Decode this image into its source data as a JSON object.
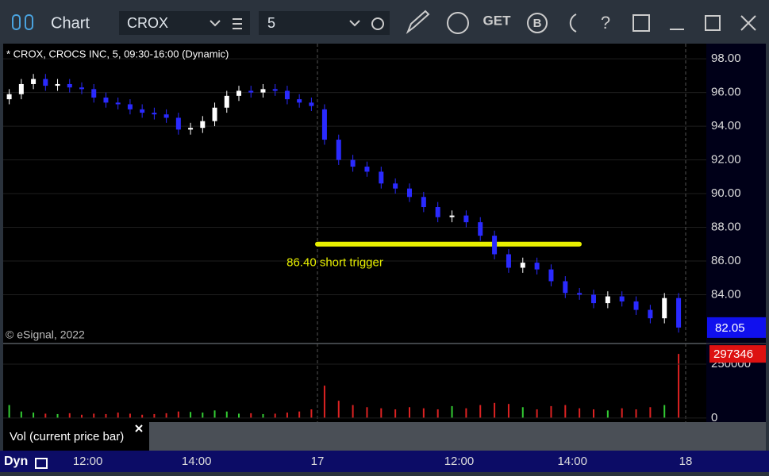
{
  "toolbar": {
    "title": "Chart",
    "symbol": "CROX",
    "interval": "5",
    "get": "GET",
    "b": "B",
    "help": "?"
  },
  "chart_data": {
    "type": "candlestick",
    "title": "* CROX, CROCS INC, 5, 09:30-16:00 (Dynamic)",
    "watermark": "© eSignal, 2022",
    "annotation": {
      "text": "86.40 short trigger",
      "level": 87.0,
      "color": "#e8f000"
    },
    "up_color": "#ffffff",
    "down_color": "#2a2aff",
    "open": [
      95.6,
      95.9,
      96.5,
      96.8,
      96.4,
      96.5,
      96.3,
      96.2,
      95.7,
      95.4,
      95.3,
      95.0,
      94.8,
      94.7,
      94.5,
      93.8,
      93.9,
      94.3,
      95.1,
      95.8,
      96.1,
      96.0,
      96.2,
      96.1,
      95.6,
      95.4,
      95.0,
      93.2,
      92.0,
      91.6,
      91.3,
      90.6,
      90.3,
      89.8,
      89.2,
      88.6,
      88.7,
      88.3,
      87.5,
      86.4,
      85.6,
      85.9,
      85.5,
      84.8,
      84.1,
      84.0,
      83.5,
      83.9,
      83.6,
      83.1,
      82.6,
      83.8
    ],
    "high": [
      96.2,
      96.8,
      97.1,
      97.1,
      96.8,
      96.8,
      96.6,
      96.5,
      96.0,
      95.7,
      95.6,
      95.3,
      95.1,
      95.0,
      94.8,
      94.2,
      94.6,
      95.4,
      96.1,
      96.4,
      96.4,
      96.5,
      96.5,
      96.4,
      95.9,
      95.7,
      95.3,
      93.5,
      92.3,
      91.9,
      91.6,
      90.9,
      90.6,
      90.1,
      89.5,
      89.0,
      89.0,
      88.6,
      87.8,
      86.7,
      86.2,
      86.2,
      85.8,
      85.1,
      84.4,
      84.3,
      84.2,
      84.2,
      83.9,
      83.4,
      84.1,
      84.1
    ],
    "low": [
      95.3,
      95.6,
      96.2,
      96.1,
      96.1,
      96.0,
      95.9,
      95.4,
      95.1,
      95.0,
      94.7,
      94.5,
      94.4,
      94.2,
      93.5,
      93.5,
      93.6,
      94.0,
      94.8,
      95.5,
      95.7,
      95.7,
      95.8,
      95.3,
      95.1,
      94.9,
      92.9,
      91.7,
      91.3,
      91.0,
      90.3,
      90.0,
      89.5,
      88.9,
      88.3,
      88.3,
      88.0,
      87.2,
      86.1,
      85.3,
      85.3,
      85.2,
      84.5,
      83.8,
      83.7,
      83.2,
      83.2,
      83.3,
      82.8,
      82.3,
      82.3,
      81.75
    ],
    "close": [
      95.9,
      96.5,
      96.8,
      96.4,
      96.5,
      96.3,
      96.2,
      95.7,
      95.4,
      95.3,
      95.0,
      94.8,
      94.7,
      94.5,
      93.8,
      93.9,
      94.3,
      95.1,
      95.8,
      96.1,
      96.0,
      96.2,
      96.1,
      95.6,
      95.4,
      95.2,
      93.2,
      92.0,
      91.6,
      91.3,
      90.6,
      90.3,
      89.8,
      89.2,
      88.6,
      88.7,
      88.3,
      87.5,
      86.4,
      85.6,
      85.9,
      85.5,
      84.8,
      84.1,
      84.0,
      83.5,
      83.9,
      83.6,
      83.1,
      82.6,
      83.8,
      82.05
    ],
    "ylim": [
      81.15,
      98.9
    ],
    "yticks": [
      {
        "value": 98,
        "label": "98.00"
      },
      {
        "value": 96,
        "label": "96.00"
      },
      {
        "value": 94,
        "label": "94.00"
      },
      {
        "value": 92,
        "label": "92.00"
      },
      {
        "value": 90,
        "label": "90.00"
      },
      {
        "value": 88,
        "label": "88.00"
      },
      {
        "value": 86,
        "label": "86.00"
      },
      {
        "value": 84,
        "label": "84.00"
      }
    ],
    "last_price": {
      "value": 82.05,
      "label": "82.05"
    },
    "xticks": [
      {
        "value": 7,
        "label": "12:00"
      },
      {
        "value": 16,
        "label": "14:00"
      },
      {
        "value": 26,
        "label": "17"
      },
      {
        "value": 36,
        "label": "12:00"
      },
      {
        "value": 44,
        "label": "14:00"
      },
      {
        "value": 52,
        "label": "18"
      }
    ],
    "volume": {
      "title": "Vol (current price bar)",
      "up_color": "#33cc33",
      "down_color": "#dd2222",
      "values": [
        60000,
        30000,
        25000,
        20000,
        18000,
        22000,
        15000,
        20000,
        18000,
        25000,
        20000,
        15000,
        18000,
        22000,
        30000,
        28000,
        25000,
        35000,
        30000,
        20000,
        22000,
        18000,
        20000,
        25000,
        30000,
        40000,
        150000,
        80000,
        60000,
        50000,
        45000,
        40000,
        50000,
        45000,
        40000,
        55000,
        45000,
        60000,
        70000,
        65000,
        50000,
        40000,
        55000,
        60000,
        45000,
        40000,
        35000,
        45000,
        40000,
        50000,
        60000,
        297346
      ],
      "ylim": [
        -19000,
        342000
      ],
      "yticks": [
        0,
        250000
      ],
      "last": 297346
    },
    "mode": "Dyn"
  }
}
